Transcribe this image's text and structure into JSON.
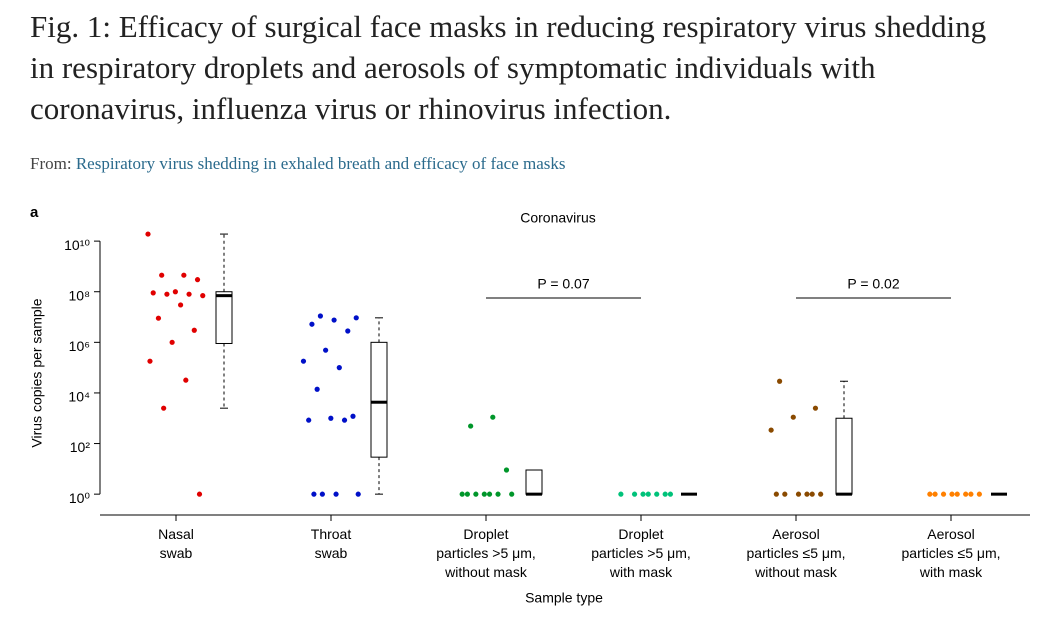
{
  "header": {
    "title": "Fig. 1: Efficacy of surgical face masks in reducing respiratory virus shedding in respiratory droplets and aerosols of symptomatic individuals with coronavirus, influenza virus or rhinovirus infection.",
    "from_label": "From:",
    "source_link": "Respiratory virus shedding in exhaled breath and efficacy of face masks"
  },
  "chart_data": {
    "type": "strip_box",
    "panel_label": "a",
    "title": "Coronavirus",
    "y_label": "Virus copies per sample",
    "x_label": "Sample type",
    "log_scale": true,
    "categories": [
      "Nasal\nswab",
      "Throat\nswab",
      "Droplet\nparticles >5 μm,\nwithout mask",
      "Droplet\nparticles >5 μm,\nwith mask",
      "Aerosol\nparticles ≤5 μm,\nwithout mask",
      "Aerosol\nparticles ≤5 μm,\nwith mask"
    ],
    "series": [
      {
        "color": "#e00000",
        "values": [
          19000000000,
          450000000,
          450000000,
          300000000,
          100000000,
          90000000,
          80000000,
          80000000,
          70000000,
          30000000,
          9000000,
          3000000,
          1000000,
          180000,
          32000,
          2500,
          1
        ],
        "box": {
          "whisker_low": 2500,
          "q1": 900000,
          "median": 70000000,
          "q3": 100000000,
          "whisker_high": 19000000000
        }
      },
      {
        "color": "#0010c8",
        "values": [
          11000000,
          9300000,
          7600000,
          5200000,
          2800000,
          490000,
          180000,
          100000,
          14000,
          1200,
          1000,
          840,
          840,
          1,
          1,
          1,
          1
        ],
        "box": {
          "whisker_low": 1,
          "q1": 29,
          "median": 4300,
          "q3": 1000000,
          "whisker_high": 9300000
        }
      },
      {
        "color": "#00962a",
        "values": [
          1100,
          490,
          9,
          1,
          1,
          1,
          1,
          1,
          1,
          1
        ],
        "box": {
          "q1": 1,
          "median": 1,
          "q3": 9
        }
      },
      {
        "color": "#00c27a",
        "values": [
          1,
          1,
          1,
          1,
          1,
          1,
          1
        ],
        "box": {
          "q1": 1,
          "median": 1,
          "q3": 1
        }
      },
      {
        "color": "#8a4a00",
        "values": [
          29000,
          2500,
          1100,
          340,
          1,
          1,
          1,
          1,
          1,
          1
        ],
        "box": {
          "whisker_low": 1,
          "q1": 1,
          "median": 1,
          "q3": 1000,
          "whisker_high": 29000
        }
      },
      {
        "color": "#ff8000",
        "values": [
          1,
          1,
          1,
          1,
          1,
          1,
          1,
          1
        ],
        "box": {
          "q1": 1,
          "median": 1,
          "q3": 1
        }
      }
    ],
    "annotations": [
      "P = 0.07",
      "P = 0.02"
    ],
    "ylim": [
      0.15,
      33000000000
    ],
    "yticks": [
      {
        "value": 1,
        "label": "10⁰"
      },
      {
        "value": 100,
        "label": "10²"
      },
      {
        "value": 10000,
        "label": "10⁴"
      },
      {
        "value": 1000000,
        "label": "10⁶"
      },
      {
        "value": 100000000,
        "label": "10⁸"
      },
      {
        "value": 10000000000,
        "label": "10¹⁰"
      }
    ]
  }
}
